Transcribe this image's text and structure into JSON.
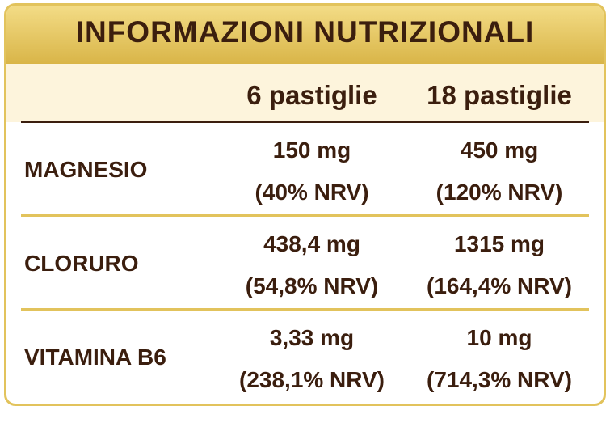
{
  "header": {
    "title": "INFORMAZIONI NUTRIZIONALI"
  },
  "table": {
    "columns": [
      "6 pastiglie",
      "18 pastiglie"
    ],
    "rows": [
      {
        "name": "MAGNESIO",
        "cells": [
          [
            "150 mg",
            "(40% NRV)"
          ],
          [
            "450 mg",
            "(120% NRV)"
          ]
        ]
      },
      {
        "name": "CLORURO",
        "cells": [
          [
            "438,4 mg",
            "(54,8% NRV)"
          ],
          [
            "1315 mg",
            "(164,4% NRV)"
          ]
        ]
      },
      {
        "name": "VITAMINA B6",
        "cells": [
          [
            "3,33 mg",
            "(238,1% NRV)"
          ],
          [
            "10 mg",
            "(714,3% NRV)"
          ]
        ]
      }
    ]
  }
}
